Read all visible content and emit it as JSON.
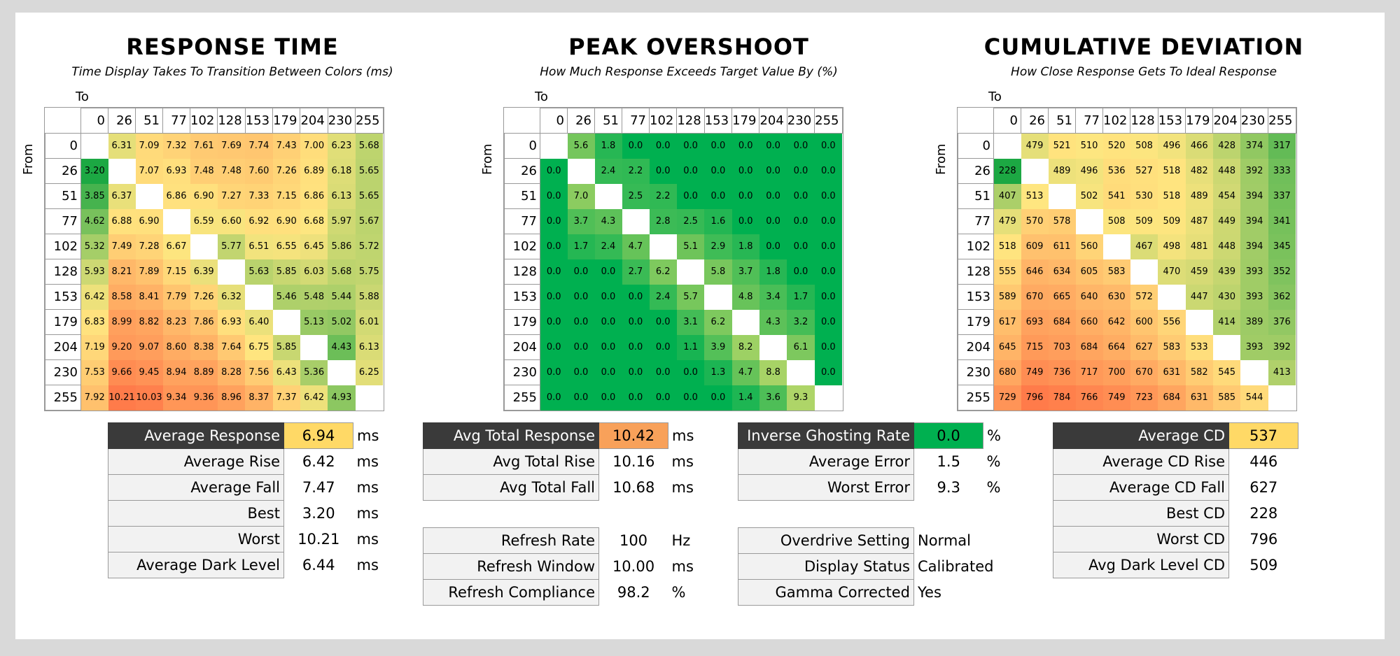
{
  "chart_data": [
    {
      "type": "heatmap",
      "title": "RESPONSE TIME",
      "subtitle": "Time Display Takes To Transition Between Colors (ms)",
      "xlabel": "To",
      "ylabel": "From",
      "levels": [
        0,
        26,
        51,
        77,
        102,
        128,
        153,
        179,
        204,
        230,
        255
      ],
      "values": [
        [
          null,
          6.31,
          7.09,
          7.32,
          7.61,
          7.69,
          7.74,
          7.43,
          7.0,
          6.23,
          5.68
        ],
        [
          3.2,
          null,
          7.07,
          6.93,
          7.48,
          7.48,
          7.6,
          7.26,
          6.89,
          6.18,
          5.65
        ],
        [
          3.85,
          6.37,
          null,
          6.86,
          6.9,
          7.27,
          7.33,
          7.15,
          6.86,
          6.13,
          5.65
        ],
        [
          4.62,
          6.88,
          6.9,
          null,
          6.59,
          6.6,
          6.92,
          6.9,
          6.68,
          5.97,
          5.67
        ],
        [
          5.32,
          7.49,
          7.28,
          6.67,
          null,
          5.77,
          6.51,
          6.55,
          6.45,
          5.86,
          5.72
        ],
        [
          5.93,
          8.21,
          7.89,
          7.15,
          6.39,
          null,
          5.63,
          5.85,
          6.03,
          5.68,
          5.75
        ],
        [
          6.42,
          8.58,
          8.41,
          7.79,
          7.26,
          6.32,
          null,
          5.46,
          5.48,
          5.44,
          5.88
        ],
        [
          6.83,
          8.99,
          8.82,
          8.23,
          7.86,
          6.93,
          6.4,
          null,
          5.13,
          5.02,
          6.01
        ],
        [
          7.19,
          9.2,
          9.07,
          8.6,
          8.38,
          7.64,
          6.75,
          5.85,
          null,
          4.43,
          6.13
        ],
        [
          7.53,
          9.66,
          9.45,
          8.94,
          8.89,
          8.28,
          7.56,
          6.43,
          5.36,
          null,
          6.25
        ],
        [
          7.92,
          10.21,
          10.03,
          9.34,
          9.36,
          8.96,
          8.37,
          7.37,
          6.42,
          4.93,
          null
        ]
      ],
      "decimals": 2
    },
    {
      "type": "heatmap",
      "title": "PEAK OVERSHOOT",
      "subtitle": "How Much Response Exceeds Target Value By (%)",
      "xlabel": "To",
      "ylabel": "From",
      "levels": [
        0,
        26,
        51,
        77,
        102,
        128,
        153,
        179,
        204,
        230,
        255
      ],
      "values": [
        [
          null,
          5.6,
          1.8,
          0.0,
          0.0,
          0.0,
          0.0,
          0.0,
          0.0,
          0.0,
          0.0
        ],
        [
          0.0,
          null,
          2.4,
          2.2,
          0.0,
          0.0,
          0.0,
          0.0,
          0.0,
          0.0,
          0.0
        ],
        [
          0.0,
          7.0,
          null,
          2.5,
          2.2,
          0.0,
          0.0,
          0.0,
          0.0,
          0.0,
          0.0
        ],
        [
          0.0,
          3.7,
          4.3,
          null,
          2.8,
          2.5,
          1.6,
          0.0,
          0.0,
          0.0,
          0.0
        ],
        [
          0.0,
          1.7,
          2.4,
          4.7,
          null,
          5.1,
          2.9,
          1.8,
          0.0,
          0.0,
          0.0
        ],
        [
          0.0,
          0.0,
          0.0,
          2.7,
          6.2,
          null,
          5.8,
          3.7,
          1.8,
          0.0,
          0.0
        ],
        [
          0.0,
          0.0,
          0.0,
          0.0,
          2.4,
          5.7,
          null,
          4.8,
          3.4,
          1.7,
          0.0
        ],
        [
          0.0,
          0.0,
          0.0,
          0.0,
          0.0,
          3.1,
          6.2,
          null,
          4.3,
          3.2,
          0.0
        ],
        [
          0.0,
          0.0,
          0.0,
          0.0,
          0.0,
          1.1,
          3.9,
          8.2,
          null,
          6.1,
          0.0
        ],
        [
          0.0,
          0.0,
          0.0,
          0.0,
          0.0,
          0.0,
          1.3,
          4.7,
          8.8,
          null,
          0.0
        ],
        [
          0.0,
          0.0,
          0.0,
          0.0,
          0.0,
          0.0,
          0.0,
          1.4,
          3.6,
          9.3,
          null
        ]
      ],
      "decimals": 1
    },
    {
      "type": "heatmap",
      "title": "CUMULATIVE DEVIATION",
      "subtitle": "How Close Response Gets To Ideal Response",
      "xlabel": "To",
      "ylabel": "From",
      "levels": [
        0,
        26,
        51,
        77,
        102,
        128,
        153,
        179,
        204,
        230,
        255
      ],
      "values": [
        [
          null,
          479,
          521,
          510,
          520,
          508,
          496,
          466,
          428,
          374,
          317
        ],
        [
          228,
          null,
          489,
          496,
          536,
          527,
          518,
          482,
          448,
          392,
          333
        ],
        [
          407,
          513,
          null,
          502,
          541,
          530,
          518,
          489,
          454,
          394,
          337
        ],
        [
          479,
          570,
          578,
          null,
          508,
          509,
          509,
          487,
          449,
          394,
          341
        ],
        [
          518,
          609,
          611,
          560,
          null,
          467,
          498,
          481,
          448,
          394,
          345
        ],
        [
          555,
          646,
          634,
          605,
          583,
          null,
          470,
          459,
          439,
          393,
          352
        ],
        [
          589,
          670,
          665,
          640,
          630,
          572,
          null,
          447,
          430,
          393,
          362
        ],
        [
          617,
          693,
          684,
          660,
          642,
          600,
          556,
          null,
          414,
          389,
          376
        ],
        [
          645,
          715,
          703,
          684,
          664,
          627,
          583,
          533,
          null,
          393,
          392
        ],
        [
          680,
          749,
          736,
          717,
          700,
          670,
          631,
          582,
          545,
          null,
          413
        ],
        [
          729,
          796,
          784,
          766,
          749,
          723,
          684,
          631,
          585,
          544,
          null
        ]
      ],
      "decimals": 0
    }
  ],
  "colors": {
    "good": "#1ca843",
    "mid": "#ffe680",
    "bad": "#ff7b4a",
    "overshoot_green": "#00b050",
    "dark_label": "#3a3a3a"
  },
  "stats": {
    "response": [
      {
        "label": "Average Response",
        "value": "6.94",
        "unit": "ms",
        "highlight": "#ffd966",
        "dark": true
      },
      {
        "label": "Average Rise",
        "value": "6.42",
        "unit": "ms"
      },
      {
        "label": "Average Fall",
        "value": "7.47",
        "unit": "ms"
      },
      {
        "label": "Best",
        "value": "3.20",
        "unit": "ms"
      },
      {
        "label": "Worst",
        "value": "10.21",
        "unit": "ms"
      },
      {
        "label": "Average Dark Level",
        "value": "6.44",
        "unit": "ms"
      }
    ],
    "total": [
      {
        "label": "Avg Total Response",
        "value": "10.42",
        "unit": "ms",
        "highlight": "#f8a15a",
        "dark": true
      },
      {
        "label": "Avg Total Rise",
        "value": "10.16",
        "unit": "ms"
      },
      {
        "label": "Avg Total Fall",
        "value": "10.68",
        "unit": "ms"
      }
    ],
    "refresh": [
      {
        "label": "Refresh Rate",
        "value": "100",
        "unit": "Hz"
      },
      {
        "label": "Refresh Window",
        "value": "10.00",
        "unit": "ms"
      },
      {
        "label": "Refresh Compliance",
        "value": "98.2",
        "unit": "%"
      }
    ],
    "ghosting": [
      {
        "label": "Inverse Ghosting Rate",
        "value": "0.0",
        "unit": "%",
        "highlight": "#00b050",
        "dark": true
      },
      {
        "label": "Average Error",
        "value": "1.5",
        "unit": "%"
      },
      {
        "label": "Worst Error",
        "value": "9.3",
        "unit": "%"
      }
    ],
    "settings": [
      {
        "label": "Overdrive Setting",
        "value": "Normal",
        "unit": ""
      },
      {
        "label": "Display Status",
        "value": "Calibrated",
        "unit": ""
      },
      {
        "label": "Gamma Corrected",
        "value": "Yes",
        "unit": ""
      }
    ],
    "cd": [
      {
        "label": "Average CD",
        "value": "537",
        "unit": "",
        "highlight": "#ffd966",
        "dark": true
      },
      {
        "label": "Average CD Rise",
        "value": "446",
        "unit": ""
      },
      {
        "label": "Average CD Fall",
        "value": "627",
        "unit": ""
      },
      {
        "label": "Best CD",
        "value": "228",
        "unit": ""
      },
      {
        "label": "Worst CD",
        "value": "796",
        "unit": ""
      },
      {
        "label": "Avg Dark Level CD",
        "value": "509",
        "unit": ""
      }
    ]
  }
}
